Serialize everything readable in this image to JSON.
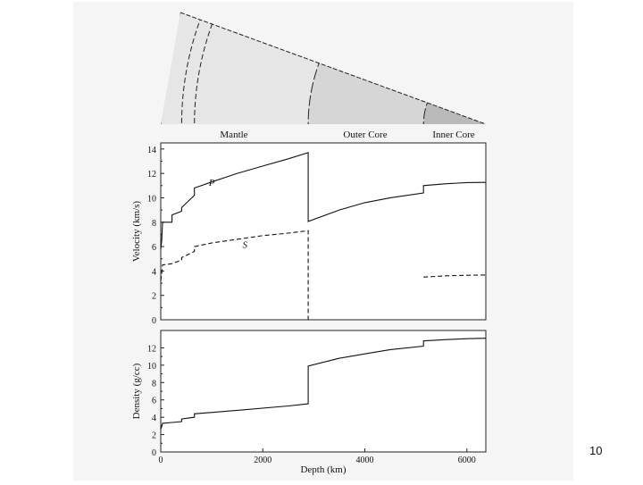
{
  "slide": {
    "page_number": "10"
  },
  "figure": {
    "layers": [
      {
        "name": "Mantle",
        "top_km": 0,
        "bottom_km": 2890,
        "fill": "#e6e6e6"
      },
      {
        "name": "Outer Core",
        "top_km": 2890,
        "bottom_km": 5150,
        "fill": "#d6d6d6"
      },
      {
        "name": "Inner Core",
        "top_km": 5150,
        "bottom_km": 6371,
        "fill": "#b9b9b9"
      }
    ],
    "boundaries_km": [
      410,
      660,
      2890,
      5150
    ]
  },
  "chart_data": [
    {
      "type": "line",
      "title": "",
      "xlabel": "",
      "ylabel": "Velocity (km/s)",
      "xlim": [
        0,
        6371
      ],
      "ylim": [
        0,
        14.5
      ],
      "yticks": [
        0,
        2,
        4,
        6,
        8,
        10,
        12,
        14
      ],
      "ytick_labels": [
        "0",
        "2",
        "4",
        "6",
        "8",
        "10",
        "12",
        "14"
      ],
      "series": [
        {
          "name": "P",
          "label": "P",
          "label_at": [
            1000,
            11.0
          ],
          "style": "solid",
          "points": [
            [
              0,
              5.8
            ],
            [
              20,
              6.5
            ],
            [
              35,
              8.0
            ],
            [
              220,
              8.0
            ],
            [
              220,
              8.6
            ],
            [
              410,
              8.9
            ],
            [
              410,
              9.2
            ],
            [
              660,
              10.2
            ],
            [
              660,
              10.8
            ],
            [
              1000,
              11.3
            ],
            [
              1500,
              12.0
            ],
            [
              2000,
              12.6
            ],
            [
              2500,
              13.2
            ],
            [
              2890,
              13.7
            ],
            [
              2890,
              8.06
            ],
            [
              3500,
              9.0
            ],
            [
              4000,
              9.6
            ],
            [
              4500,
              10.0
            ],
            [
              5150,
              10.4
            ],
            [
              5150,
              11.0
            ],
            [
              5600,
              11.15
            ],
            [
              6000,
              11.25
            ],
            [
              6371,
              11.26
            ]
          ]
        },
        {
          "name": "S",
          "label": "S",
          "label_at": [
            1650,
            5.9
          ],
          "style": "dashed",
          "points": [
            [
              0,
              3.2
            ],
            [
              20,
              3.8
            ],
            [
              35,
              4.5
            ],
            [
              220,
              4.6
            ],
            [
              410,
              4.9
            ],
            [
              410,
              5.1
            ],
            [
              660,
              5.6
            ],
            [
              660,
              6.0
            ],
            [
              1000,
              6.3
            ],
            [
              1500,
              6.6
            ],
            [
              2000,
              6.9
            ],
            [
              2500,
              7.1
            ],
            [
              2890,
              7.3
            ],
            [
              2890,
              0.0
            ]
          ]
        },
        {
          "name": "S (inner core)",
          "style": "dashed",
          "points": [
            [
              5150,
              3.5
            ],
            [
              5600,
              3.6
            ],
            [
              6000,
              3.65
            ],
            [
              6371,
              3.67
            ]
          ]
        }
      ]
    },
    {
      "type": "line",
      "title": "",
      "xlabel": "Depth (km)",
      "ylabel": "Density (g/cc)",
      "xlim": [
        0,
        6371
      ],
      "ylim": [
        0,
        14
      ],
      "xticks": [
        0,
        2000,
        4000,
        6000
      ],
      "xtick_labels": [
        "0",
        "2000",
        "4000",
        "6000"
      ],
      "yticks": [
        0,
        2,
        4,
        6,
        8,
        10,
        12
      ],
      "ytick_labels": [
        "0",
        "2",
        "4",
        "6",
        "8",
        "10",
        "12"
      ],
      "series": [
        {
          "name": "Density",
          "style": "solid",
          "points": [
            [
              0,
              2.6
            ],
            [
              35,
              3.3
            ],
            [
              220,
              3.4
            ],
            [
              410,
              3.5
            ],
            [
              410,
              3.8
            ],
            [
              660,
              4.0
            ],
            [
              660,
              4.4
            ],
            [
              1500,
              4.8
            ],
            [
              2500,
              5.3
            ],
            [
              2890,
              5.55
            ],
            [
              2890,
              9.9
            ],
            [
              3500,
              10.8
            ],
            [
              4000,
              11.3
            ],
            [
              4500,
              11.8
            ],
            [
              5150,
              12.2
            ],
            [
              5150,
              12.8
            ],
            [
              5600,
              12.95
            ],
            [
              6000,
              13.05
            ],
            [
              6371,
              13.1
            ]
          ]
        }
      ]
    }
  ]
}
